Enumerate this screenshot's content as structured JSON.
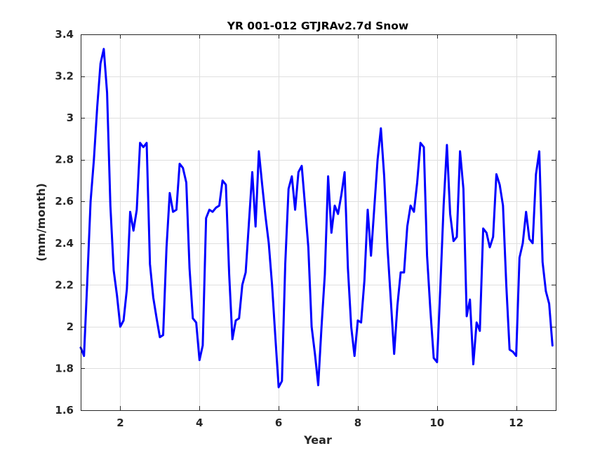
{
  "chart_data": {
    "type": "line",
    "title": "YR 001-012 GTJRAv2.7d Snow",
    "xlabel": "Year",
    "ylabel": "(mm/month)",
    "xlim": [
      1,
      13
    ],
    "ylim": [
      1.6,
      3.4
    ],
    "xticks": [
      2,
      4,
      6,
      8,
      10,
      12
    ],
    "yticks": [
      1.6,
      1.8,
      2,
      2.2,
      2.4,
      2.6,
      2.8,
      3,
      3.2,
      3.4
    ],
    "grid": true,
    "series_color": "#0000ff",
    "series": [
      {
        "x": [
          1.0,
          1.083,
          1.167,
          1.25,
          1.333,
          1.417,
          1.5,
          1.583,
          1.667,
          1.75,
          1.833,
          1.917,
          2.0,
          2.083,
          2.167,
          2.25,
          2.333,
          2.417,
          2.5,
          2.583,
          2.667,
          2.75,
          2.833,
          2.917,
          3.0,
          3.083,
          3.167,
          3.25,
          3.333,
          3.417,
          3.5,
          3.583,
          3.667,
          3.75,
          3.833,
          3.917,
          4.0,
          4.083,
          4.167,
          4.25,
          4.333,
          4.417,
          4.5,
          4.583,
          4.667,
          4.75,
          4.833,
          4.917,
          5.0,
          5.083,
          5.167,
          5.25,
          5.333,
          5.417,
          5.5,
          5.583,
          5.667,
          5.75,
          5.833,
          5.917,
          6.0,
          6.083,
          6.167,
          6.25,
          6.333,
          6.417,
          6.5,
          6.583,
          6.667,
          6.75,
          6.833,
          6.917,
          7.0,
          7.083,
          7.167,
          7.25,
          7.333,
          7.417,
          7.5,
          7.583,
          7.667,
          7.75,
          7.833,
          7.917,
          8.0,
          8.083,
          8.167,
          8.25,
          8.333,
          8.417,
          8.5,
          8.583,
          8.667,
          8.75,
          8.833,
          8.917,
          9.0,
          9.083,
          9.167,
          9.25,
          9.333,
          9.417,
          9.5,
          9.583,
          9.667,
          9.75,
          9.833,
          9.917,
          10.0,
          10.083,
          10.167,
          10.25,
          10.333,
          10.417,
          10.5,
          10.583,
          10.667,
          10.75,
          10.833,
          10.917,
          11.0,
          11.083,
          11.167,
          11.25,
          11.333,
          11.417,
          11.5,
          11.583,
          11.667,
          11.75,
          11.833,
          11.917,
          12.0,
          12.083,
          12.167,
          12.25,
          12.333,
          12.417,
          12.5,
          12.583,
          12.667,
          12.75,
          12.833,
          12.917
        ],
        "y": [
          1.9,
          1.86,
          2.22,
          2.6,
          2.8,
          3.05,
          3.26,
          3.33,
          3.12,
          2.58,
          2.27,
          2.15,
          2.0,
          2.03,
          2.18,
          2.55,
          2.46,
          2.56,
          2.88,
          2.86,
          2.88,
          2.3,
          2.14,
          2.04,
          1.95,
          1.96,
          2.38,
          2.64,
          2.55,
          2.56,
          2.78,
          2.76,
          2.69,
          2.28,
          2.04,
          2.02,
          1.84,
          1.91,
          2.52,
          2.56,
          2.55,
          2.57,
          2.58,
          2.7,
          2.68,
          2.25,
          1.94,
          2.03,
          2.04,
          2.2,
          2.26,
          2.5,
          2.74,
          2.48,
          2.84,
          2.68,
          2.53,
          2.4,
          2.2,
          1.95,
          1.71,
          1.74,
          2.3,
          2.66,
          2.72,
          2.56,
          2.74,
          2.77,
          2.58,
          2.38,
          2.0,
          1.87,
          1.72,
          2.0,
          2.25,
          2.72,
          2.45,
          2.58,
          2.54,
          2.63,
          2.74,
          2.28,
          2.0,
          1.86,
          2.03,
          2.02,
          2.22,
          2.56,
          2.34,
          2.57,
          2.8,
          2.95,
          2.72,
          2.38,
          2.13,
          1.87,
          2.1,
          2.26,
          2.26,
          2.48,
          2.58,
          2.55,
          2.69,
          2.88,
          2.86,
          2.34,
          2.08,
          1.85,
          1.83,
          2.18,
          2.58,
          2.87,
          2.54,
          2.41,
          2.43,
          2.84,
          2.66,
          2.05,
          2.13,
          1.82,
          2.02,
          1.98,
          2.47,
          2.45,
          2.38,
          2.43,
          2.73,
          2.68,
          2.58,
          2.2,
          1.89,
          1.88,
          1.86,
          2.33,
          2.4,
          2.55,
          2.42,
          2.4,
          2.73,
          2.84,
          2.31,
          2.17,
          2.11,
          1.91
        ]
      }
    ]
  }
}
